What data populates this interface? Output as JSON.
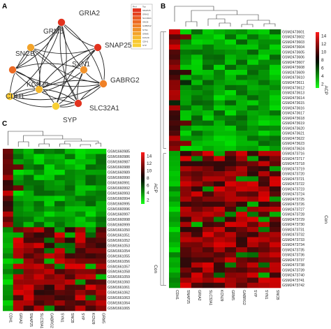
{
  "panels": {
    "A": {
      "letter": "A",
      "nodes": [
        {
          "label": "GRIA2",
          "color": "#e2331f"
        },
        {
          "label": "GRM5",
          "color": "#f2a32a"
        },
        {
          "label": "SNAP25",
          "color": "#e2331f"
        },
        {
          "label": "SNCB",
          "color": "#ec6a24"
        },
        {
          "label": "SYN1",
          "color": "#f1922a"
        },
        {
          "label": "GABRG2",
          "color": "#ef8026"
        },
        {
          "label": "KCNJ9",
          "color": "#f6b92e"
        },
        {
          "label": "CDH1",
          "color": "#f8c933"
        },
        {
          "label": "SLC32A1",
          "color": "#e2331f"
        },
        {
          "label": "SYP",
          "color": "#f8cf34"
        }
      ],
      "legend_header": [
        "Red",
        "Top"
      ],
      "legend_rows": [
        "SNAP25",
        "GRIA2",
        "SLC32A1",
        "SNCB",
        "GABRG2",
        "SYN1",
        "GRM5",
        "KCNJ9",
        "CDH1",
        "SYP"
      ],
      "legend_colors": [
        "#e2331f",
        "#e4421f",
        "#e95a22",
        "#ec6a24",
        "#ef8026",
        "#f1922a",
        "#f2a32a",
        "#f6b92e",
        "#f8c933",
        "#f8cf34"
      ]
    },
    "B": {
      "letter": "B",
      "genes": [
        "CDH1",
        "SNAP25",
        "GRIA2",
        "SLC32A1",
        "KCNJ9",
        "GRM5",
        "GABRG2",
        "SYP",
        "SYN1",
        "SNCB"
      ],
      "samples": [
        "GSM2473601",
        "GSM2473602",
        "GSM2473603",
        "GSM2473604",
        "GSM2473605",
        "GSM2473606",
        "GSM2473607",
        "GSM2473608",
        "GSM2473609",
        "GSM2473610",
        "GSM2473611",
        "GSM2473612",
        "GSM2473613",
        "GSM2473614",
        "GSM2473615",
        "GSM2473616",
        "GSM2473617",
        "GSM2473618",
        "GSM2473619",
        "GSM2473620",
        "GSM2473621",
        "GSM2473622",
        "GSM2473623",
        "GSM2473624",
        "GSM2473716",
        "GSM2473717",
        "GSM2473718",
        "GSM2473719",
        "GSM2473720",
        "GSM2473721",
        "GSM2473722",
        "GSM2473723",
        "GSM2473724",
        "GSM2473725",
        "GSM2473726",
        "GSM2473727",
        "GSM2473728",
        "GSM2473729",
        "GSM2473730",
        "GSM2473731",
        "GSM2473732",
        "GSM2473733",
        "GSM2473734",
        "GSM2473735",
        "GSM2473736",
        "GSM2473737",
        "GSM2473738",
        "GSM2473739",
        "GSM2473740",
        "GSM2473741",
        "GSM2473742"
      ],
      "groups": [
        {
          "label": "ACP",
          "n": 24
        },
        {
          "label": "Con",
          "n": 27
        }
      ],
      "scale_ticks": [
        "14",
        "12",
        "10",
        "8",
        "6",
        "4",
        "2"
      ]
    },
    "C": {
      "letter": "C",
      "genes": [
        "CDH1",
        "GRIA2",
        "SNAP25",
        "SLC32A1",
        "GABRG2",
        "SYN1",
        "SNCB",
        "SYP",
        "KCNJ9",
        "GRM5"
      ],
      "samples": [
        "GSM1660985",
        "GSM1660986",
        "GSM1660987",
        "GSM1660988",
        "GSM1660989",
        "GSM1660990",
        "GSM1660991",
        "GSM1660992",
        "GSM1660993",
        "GSM1660994",
        "GSM1660995",
        "GSM1660996",
        "GSM1660997",
        "GSM1660998",
        "GSM1660999",
        "GSM1661050",
        "GSM1661051",
        "GSM1661052",
        "GSM1661053",
        "GSM1661054",
        "GSM1661055",
        "GSM1661056",
        "GSM1661057",
        "GSM1661058",
        "GSM1661059",
        "GSM1661060",
        "GSM1661061",
        "GSM1661062",
        "GSM1661063",
        "GSM1661064",
        "GSM1661065"
      ],
      "groups": [
        {
          "label": "ACP",
          "n": 15
        },
        {
          "label": "Con",
          "n": 16
        }
      ],
      "scale_ticks": [
        "14",
        "12",
        "10",
        "8",
        "6",
        "4",
        "2"
      ]
    }
  }
}
